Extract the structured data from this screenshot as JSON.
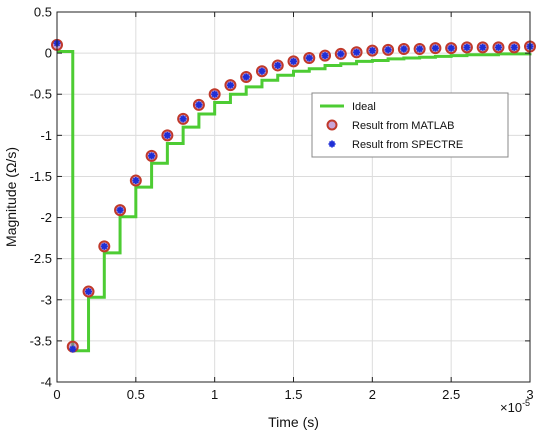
{
  "chart_data": {
    "type": "line",
    "xlabel": "Time (s)",
    "ylabel": "Magnitude (Ω/s)",
    "x_exponent_label": "×10",
    "x_exponent_power": "-5",
    "xlim": [
      0,
      3
    ],
    "ylim": [
      -4,
      0.5
    ],
    "x_ticks": [
      0,
      0.5,
      1,
      1.5,
      2,
      2.5,
      3
    ],
    "x_tick_labels": [
      "0",
      "0.5",
      "1",
      "1.5",
      "2",
      "2.5",
      "3"
    ],
    "y_ticks": [
      0.5,
      0,
      -0.5,
      -1,
      -1.5,
      -2,
      -2.5,
      -3,
      -3.5,
      -4
    ],
    "y_tick_labels": [
      "0.5",
      "0",
      "-0.5",
      "-1",
      "-1.5",
      "-2",
      "-2.5",
      "-3",
      "-3.5",
      "-4"
    ],
    "grid": true,
    "legend_position": "center-right",
    "colors": {
      "ideal": "#4dcc33",
      "matlab": "#c0392b",
      "matlab_fill": "#9b59b6",
      "spectre": "#1f2fd6"
    },
    "series": [
      {
        "name": "Ideal",
        "style": "step",
        "x": [
          0,
          0.1,
          0.2,
          0.3,
          0.4,
          0.5,
          0.6,
          0.7,
          0.8,
          0.9,
          1.0,
          1.1,
          1.2,
          1.3,
          1.4,
          1.5,
          1.6,
          1.7,
          1.8,
          1.9,
          2.0,
          2.1,
          2.2,
          2.3,
          2.4,
          2.5,
          2.6,
          2.7,
          2.8,
          2.9,
          3.0
        ],
        "y": [
          0.02,
          -3.62,
          -2.97,
          -2.43,
          -1.99,
          -1.63,
          -1.34,
          -1.1,
          -0.9,
          -0.74,
          -0.6,
          -0.5,
          -0.41,
          -0.33,
          -0.27,
          -0.22,
          -0.19,
          -0.15,
          -0.13,
          -0.1,
          -0.09,
          -0.07,
          -0.06,
          -0.05,
          -0.04,
          -0.03,
          -0.02,
          -0.02,
          -0.01,
          -0.01,
          0
        ]
      },
      {
        "name": "Result from MATLAB",
        "style": "marker-circle",
        "x": [
          0,
          0.1,
          0.2,
          0.3,
          0.4,
          0.5,
          0.6,
          0.7,
          0.8,
          0.9,
          1.0,
          1.1,
          1.2,
          1.3,
          1.4,
          1.5,
          1.6,
          1.7,
          1.8,
          1.9,
          2.0,
          2.1,
          2.2,
          2.3,
          2.4,
          2.5,
          2.6,
          2.7,
          2.8,
          2.9,
          3.0
        ],
        "y": [
          0.1,
          -3.57,
          -2.9,
          -2.35,
          -1.91,
          -1.55,
          -1.25,
          -1.0,
          -0.8,
          -0.63,
          -0.5,
          -0.39,
          -0.29,
          -0.22,
          -0.15,
          -0.1,
          -0.06,
          -0.03,
          -0.01,
          0.01,
          0.03,
          0.04,
          0.05,
          0.05,
          0.06,
          0.06,
          0.07,
          0.07,
          0.07,
          0.07,
          0.08
        ]
      },
      {
        "name": "Result from SPECTRE",
        "style": "marker-star",
        "x": [
          0,
          0.1,
          0.2,
          0.3,
          0.4,
          0.5,
          0.6,
          0.7,
          0.8,
          0.9,
          1.0,
          1.1,
          1.2,
          1.3,
          1.4,
          1.5,
          1.6,
          1.7,
          1.8,
          1.9,
          2.0,
          2.1,
          2.2,
          2.3,
          2.4,
          2.5,
          2.6,
          2.7,
          2.8,
          2.9,
          3.0
        ],
        "y": [
          0.12,
          -3.6,
          -2.9,
          -2.35,
          -1.91,
          -1.55,
          -1.25,
          -1.0,
          -0.8,
          -0.63,
          -0.5,
          -0.39,
          -0.29,
          -0.22,
          -0.15,
          -0.1,
          -0.06,
          -0.03,
          -0.01,
          0.01,
          0.03,
          0.04,
          0.05,
          0.05,
          0.06,
          0.06,
          0.07,
          0.07,
          0.07,
          0.07,
          0.08
        ]
      }
    ]
  }
}
